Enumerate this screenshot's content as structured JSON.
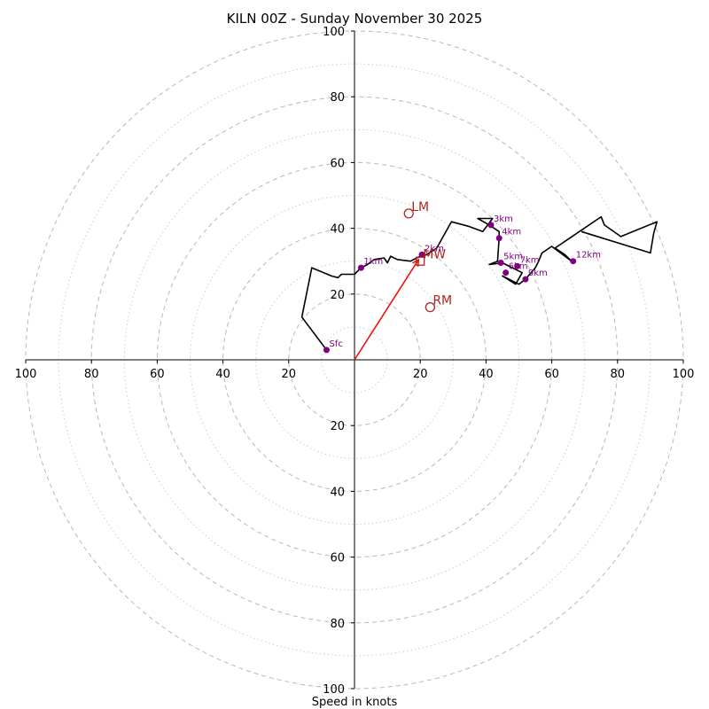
{
  "chart_data": {
    "type": "hodograph",
    "title": "KILN 00Z - Sunday November 30 2025",
    "xlabel": "Speed in knots",
    "range": [
      -100,
      100
    ],
    "ring_major": [
      20,
      40,
      60,
      80,
      100
    ],
    "ring_minor": [
      10,
      30,
      50,
      70,
      90
    ],
    "ticks_x": [
      "100",
      "80",
      "60",
      "40",
      "20",
      "20",
      "40",
      "60",
      "80",
      "100"
    ],
    "ticks_x_values": [
      -100,
      -80,
      -60,
      -40,
      -20,
      20,
      40,
      60,
      80,
      100
    ],
    "ticks_y": [
      "100",
      "80",
      "60",
      "40",
      "20",
      "20",
      "40",
      "60",
      "80",
      "100"
    ],
    "ticks_y_values": [
      100,
      80,
      60,
      40,
      20,
      -20,
      -40,
      -60,
      -80,
      -100
    ],
    "trace": {
      "color": "#000000",
      "points": [
        [
          -8.5,
          3
        ],
        [
          -16,
          13
        ],
        [
          -13,
          28
        ],
        [
          -7,
          25.5
        ],
        [
          -5,
          25
        ],
        [
          -4,
          26
        ],
        [
          0,
          26
        ],
        [
          2,
          28
        ],
        [
          4,
          29
        ],
        [
          6,
          30.5
        ],
        [
          9,
          31
        ],
        [
          10,
          29.5
        ],
        [
          11,
          31.5
        ],
        [
          13,
          30.5
        ],
        [
          17,
          30
        ],
        [
          18,
          30.5
        ],
        [
          20,
          31.5
        ],
        [
          22,
          32
        ],
        [
          25,
          34
        ],
        [
          29.5,
          42
        ],
        [
          35,
          40.5
        ],
        [
          39,
          39
        ],
        [
          42,
          43
        ],
        [
          37.5,
          43
        ],
        [
          41,
          41
        ],
        [
          44,
          39
        ],
        [
          44,
          37
        ],
        [
          43.5,
          30
        ],
        [
          41,
          29
        ],
        [
          45,
          29.5
        ],
        [
          51,
          26.5
        ],
        [
          49,
          23
        ],
        [
          45,
          25.5
        ],
        [
          48,
          24
        ],
        [
          50,
          23
        ],
        [
          52,
          24.5
        ],
        [
          55,
          28
        ],
        [
          56,
          30
        ],
        [
          57,
          32.5
        ],
        [
          60,
          34.5
        ],
        [
          66,
          30
        ],
        [
          64,
          32
        ],
        [
          61,
          34
        ],
        [
          75,
          43.5
        ],
        [
          76,
          41
        ],
        [
          81,
          37.5
        ],
        [
          92,
          42
        ],
        [
          91,
          38.5
        ],
        [
          90,
          32.5
        ],
        [
          69,
          39
        ]
      ]
    },
    "height_markers": [
      {
        "label": "Sfc",
        "u": -8.5,
        "v": 3
      },
      {
        "label": "1km",
        "u": 2,
        "v": 28
      },
      {
        "label": "2km",
        "u": 20.5,
        "v": 32
      },
      {
        "label": "3km",
        "u": 41.5,
        "v": 41
      },
      {
        "label": "4km",
        "u": 44,
        "v": 37
      },
      {
        "label": "5km",
        "u": 44.5,
        "v": 29.5
      },
      {
        "label": "6km",
        "u": 46,
        "v": 26.5
      },
      {
        "label": "7km",
        "u": 49.5,
        "v": 28.5
      },
      {
        "label": "9km",
        "u": 52,
        "v": 24.5
      },
      {
        "label": "12km",
        "u": 66.5,
        "v": 30
      }
    ],
    "marker_color": "#800080",
    "storm_motion": [
      {
        "label": "LM",
        "u": 16.5,
        "v": 44.5,
        "symbol": "circle"
      },
      {
        "label": "RM",
        "u": 23,
        "v": 16,
        "symbol": "circle"
      },
      {
        "label": "MW",
        "u": 20,
        "v": 30,
        "symbol": "square"
      }
    ],
    "storm_color": "#b22222",
    "shear_vector": {
      "from": [
        0,
        0
      ],
      "to": [
        19.5,
        30.5
      ],
      "color": "#ee1111"
    },
    "grid": true
  }
}
